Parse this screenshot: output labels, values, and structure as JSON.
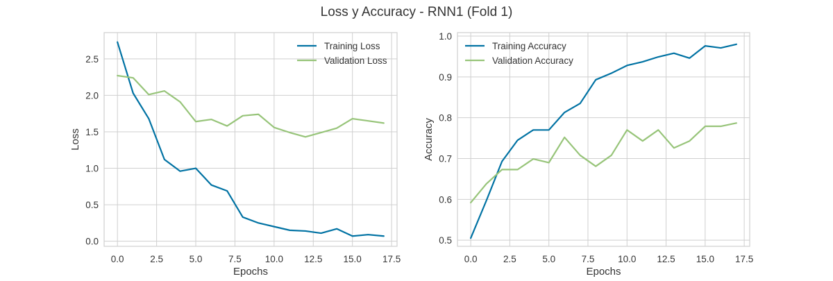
{
  "figure": {
    "title": "Loss y Accuracy - RNN1 (Fold 1)"
  },
  "style": {
    "training_color": "#0072a3",
    "validation_color": "#97c479",
    "grid_color": "#cfcfcf",
    "axes_edge_color": "#cfcfcf",
    "text_color": "#333333"
  },
  "chart_data": [
    {
      "type": "line",
      "xlabel": "Epochs",
      "ylabel": "Loss",
      "xlim": [
        -0.85,
        17.85
      ],
      "ylim": [
        -0.07,
        2.86
      ],
      "xticks": [
        0.0,
        2.5,
        5.0,
        7.5,
        10.0,
        12.5,
        15.0,
        17.5
      ],
      "xtick_labels": [
        "0.0",
        "2.5",
        "5.0",
        "7.5",
        "10.0",
        "12.5",
        "15.0",
        "17.5"
      ],
      "yticks": [
        0.0,
        0.5,
        1.0,
        1.5,
        2.0,
        2.5
      ],
      "ytick_labels": [
        "0.0",
        "0.5",
        "1.0",
        "1.5",
        "2.0",
        "2.5"
      ],
      "grid": true,
      "legend": "upper right",
      "x": [
        0,
        1,
        2,
        3,
        4,
        5,
        6,
        7,
        8,
        9,
        10,
        11,
        12,
        13,
        14,
        15,
        16,
        17
      ],
      "series": [
        {
          "name": "Training Loss",
          "color": "#0072a3",
          "values": [
            2.73,
            2.03,
            1.68,
            1.12,
            0.96,
            1.0,
            0.77,
            0.69,
            0.33,
            0.25,
            0.2,
            0.15,
            0.14,
            0.11,
            0.17,
            0.07,
            0.09,
            0.07
          ]
        },
        {
          "name": "Validation Loss",
          "color": "#97c479",
          "values": [
            2.27,
            2.24,
            2.01,
            2.06,
            1.91,
            1.64,
            1.67,
            1.58,
            1.72,
            1.74,
            1.56,
            1.49,
            1.43,
            1.49,
            1.55,
            1.68,
            1.65,
            1.62
          ]
        }
      ]
    },
    {
      "type": "line",
      "xlabel": "Epochs",
      "ylabel": "Accuracy",
      "xlim": [
        -0.85,
        17.85
      ],
      "ylim": [
        0.485,
        1.0085
      ],
      "xticks": [
        0.0,
        2.5,
        5.0,
        7.5,
        10.0,
        12.5,
        15.0,
        17.5
      ],
      "xtick_labels": [
        "0.0",
        "2.5",
        "5.0",
        "7.5",
        "10.0",
        "12.5",
        "15.0",
        "17.5"
      ],
      "yticks": [
        0.5,
        0.6,
        0.7,
        0.8,
        0.9,
        1.0
      ],
      "ytick_labels": [
        "0.5",
        "0.6",
        "0.7",
        "0.8",
        "0.9",
        "1.0"
      ],
      "grid": true,
      "legend": "upper left",
      "x": [
        0,
        1,
        2,
        3,
        4,
        5,
        6,
        7,
        8,
        9,
        10,
        11,
        12,
        13,
        14,
        15,
        16,
        17
      ],
      "series": [
        {
          "name": "Training Accuracy",
          "color": "#0072a3",
          "values": [
            0.505,
            0.597,
            0.693,
            0.745,
            0.77,
            0.77,
            0.813,
            0.835,
            0.893,
            0.909,
            0.928,
            0.937,
            0.949,
            0.958,
            0.946,
            0.976,
            0.971,
            0.98
          ]
        },
        {
          "name": "Validation Accuracy",
          "color": "#97c479",
          "values": [
            0.592,
            0.638,
            0.673,
            0.673,
            0.699,
            0.69,
            0.752,
            0.708,
            0.681,
            0.708,
            0.77,
            0.743,
            0.77,
            0.726,
            0.743,
            0.779,
            0.779,
            0.787
          ]
        }
      ]
    }
  ]
}
